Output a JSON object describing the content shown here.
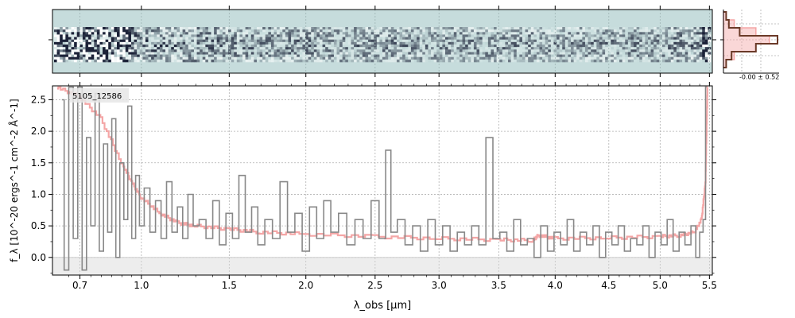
{
  "chart_data": [
    {
      "type": "heatmap",
      "panel": "2D spectrum",
      "colors": {
        "background": "#c6dcdc",
        "dark": "#1c2238",
        "bright": "#ffffff"
      },
      "rows": [
        {
          "level": 0.0
        },
        {
          "level": 0.0
        },
        {
          "level": 0.35
        },
        {
          "level": 0.55
        },
        {
          "level": 0.75
        },
        {
          "level": 0.9
        },
        {
          "level": 1.0
        },
        {
          "level": 1.0
        },
        {
          "level": 0.9
        },
        {
          "level": 0.75
        },
        {
          "level": 0.55
        },
        {
          "level": 0.35
        },
        {
          "level": 0.0
        },
        {
          "level": 0.0
        }
      ],
      "noise_by_wavelength": [
        {
          "x": 0.6,
          "noise": 1.0
        },
        {
          "x": 0.9,
          "noise": 0.9
        },
        {
          "x": 1.0,
          "noise": 0.6
        },
        {
          "x": 1.5,
          "noise": 0.45
        },
        {
          "x": 3.0,
          "noise": 0.35
        },
        {
          "x": 5.0,
          "noise": 0.35
        },
        {
          "x": 5.4,
          "noise": 0.5
        },
        {
          "x": 5.5,
          "noise": 1.0
        }
      ]
    },
    {
      "type": "line",
      "panel": "residual histogram",
      "annotation": "-0.00 ± 0.52",
      "colors": {
        "data": "#6b3a28",
        "model": "#f4a6a6"
      },
      "bins": [
        -3,
        -2,
        -1,
        0,
        1,
        2,
        3
      ],
      "series": [
        {
          "name": "",
          "values": [
            0.05,
            0.1,
            0.3,
            1.0,
            0.6,
            0.15,
            0.05
          ]
        },
        {
          "name": "",
          "values": [
            0.05,
            0.2,
            0.6,
            0.85,
            0.6,
            0.2,
            0.05
          ]
        }
      ]
    },
    {
      "type": "line",
      "panel": "1D spectrum",
      "label": "5105_12586",
      "title": "",
      "xlabel": "λ_obs [μm]",
      "ylabel": "f_λ [10^-20 ergs^-1 cm^-2 Å^-1]",
      "xlim": [
        0.58,
        5.53
      ],
      "ylim": [
        -0.28,
        2.72
      ],
      "x_scale": "power-law, roughly λ^0.6",
      "x_tick_labels": [
        "0.7",
        "1.0",
        "1.5",
        "2.0",
        "2.5",
        "3.0",
        "3.5",
        "4.0",
        "4.5",
        "5.0",
        "5.5"
      ],
      "y_tick_labels": [
        "0.0",
        "0.5",
        "1.0",
        "1.5",
        "2.0",
        "2.5"
      ],
      "y_ticks": [
        0.0,
        0.5,
        1.0,
        1.5,
        2.0,
        2.5
      ],
      "grid": true,
      "colors": {
        "data": "#888888",
        "model": "#f4a6a6",
        "band": "#d6d6d6"
      },
      "series": [
        {
          "name": "",
          "role": "observed flux (step)",
          "points": [
            [
              0.62,
              2.5
            ],
            [
              0.64,
              -0.2
            ],
            [
              0.66,
              2.7
            ],
            [
              0.68,
              0.3
            ],
            [
              0.7,
              2.7
            ],
            [
              0.72,
              -0.2
            ],
            [
              0.74,
              1.9
            ],
            [
              0.76,
              0.5
            ],
            [
              0.78,
              2.6
            ],
            [
              0.8,
              0.1
            ],
            [
              0.82,
              1.8
            ],
            [
              0.84,
              0.4
            ],
            [
              0.86,
              2.2
            ],
            [
              0.88,
              0.0
            ],
            [
              0.9,
              1.5
            ],
            [
              0.92,
              0.6
            ],
            [
              0.94,
              2.4
            ],
            [
              0.96,
              0.3
            ],
            [
              0.98,
              1.3
            ],
            [
              1.0,
              0.5
            ],
            [
              1.03,
              1.1
            ],
            [
              1.06,
              0.4
            ],
            [
              1.09,
              0.9
            ],
            [
              1.12,
              0.3
            ],
            [
              1.15,
              1.2
            ],
            [
              1.18,
              0.4
            ],
            [
              1.21,
              0.8
            ],
            [
              1.24,
              0.3
            ],
            [
              1.27,
              1.0
            ],
            [
              1.3,
              0.5
            ],
            [
              1.34,
              0.6
            ],
            [
              1.38,
              0.3
            ],
            [
              1.42,
              0.9
            ],
            [
              1.46,
              0.2
            ],
            [
              1.5,
              0.7
            ],
            [
              1.54,
              0.3
            ],
            [
              1.58,
              1.3
            ],
            [
              1.62,
              0.4
            ],
            [
              1.66,
              0.8
            ],
            [
              1.7,
              0.2
            ],
            [
              1.75,
              0.6
            ],
            [
              1.8,
              0.3
            ],
            [
              1.85,
              1.2
            ],
            [
              1.9,
              0.4
            ],
            [
              1.95,
              0.7
            ],
            [
              2.0,
              0.1
            ],
            [
              2.05,
              0.8
            ],
            [
              2.1,
              0.3
            ],
            [
              2.15,
              0.9
            ],
            [
              2.2,
              0.4
            ],
            [
              2.26,
              0.7
            ],
            [
              2.32,
              0.2
            ],
            [
              2.38,
              0.6
            ],
            [
              2.44,
              0.3
            ],
            [
              2.5,
              0.9
            ],
            [
              2.56,
              0.3
            ],
            [
              2.6,
              1.7
            ],
            [
              2.64,
              0.4
            ],
            [
              2.7,
              0.6
            ],
            [
              2.76,
              0.2
            ],
            [
              2.82,
              0.5
            ],
            [
              2.88,
              0.1
            ],
            [
              2.94,
              0.6
            ],
            [
              3.0,
              0.2
            ],
            [
              3.06,
              0.5
            ],
            [
              3.12,
              0.1
            ],
            [
              3.18,
              0.4
            ],
            [
              3.24,
              0.2
            ],
            [
              3.3,
              0.5
            ],
            [
              3.36,
              0.2
            ],
            [
              3.42,
              1.9
            ],
            [
              3.48,
              0.3
            ],
            [
              3.54,
              0.4
            ],
            [
              3.6,
              0.1
            ],
            [
              3.66,
              0.6
            ],
            [
              3.72,
              0.2
            ],
            [
              3.78,
              0.3
            ],
            [
              3.84,
              0.0
            ],
            [
              3.9,
              0.5
            ],
            [
              3.96,
              0.1
            ],
            [
              4.02,
              0.4
            ],
            [
              4.08,
              0.2
            ],
            [
              4.14,
              0.6
            ],
            [
              4.2,
              0.1
            ],
            [
              4.26,
              0.4
            ],
            [
              4.32,
              0.2
            ],
            [
              4.38,
              0.5
            ],
            [
              4.44,
              0.0
            ],
            [
              4.5,
              0.4
            ],
            [
              4.56,
              0.2
            ],
            [
              4.62,
              0.5
            ],
            [
              4.68,
              0.1
            ],
            [
              4.74,
              0.3
            ],
            [
              4.8,
              0.2
            ],
            [
              4.86,
              0.5
            ],
            [
              4.92,
              0.0
            ],
            [
              4.98,
              0.4
            ],
            [
              5.04,
              0.2
            ],
            [
              5.1,
              0.6
            ],
            [
              5.16,
              0.1
            ],
            [
              5.22,
              0.4
            ],
            [
              5.28,
              0.2
            ],
            [
              5.34,
              0.5
            ],
            [
              5.38,
              0.0
            ],
            [
              5.42,
              0.4
            ],
            [
              5.45,
              0.6
            ],
            [
              5.47,
              2.7
            ]
          ]
        },
        {
          "name": "",
          "role": "model continuum",
          "points": [
            [
              0.6,
              2.7
            ],
            [
              0.7,
              2.55
            ],
            [
              0.8,
              2.2
            ],
            [
              0.9,
              1.5
            ],
            [
              0.95,
              1.2
            ],
            [
              1.0,
              0.95
            ],
            [
              1.1,
              0.7
            ],
            [
              1.2,
              0.55
            ],
            [
              1.3,
              0.5
            ],
            [
              1.5,
              0.45
            ],
            [
              1.7,
              0.4
            ],
            [
              2.0,
              0.37
            ],
            [
              2.5,
              0.33
            ],
            [
              3.0,
              0.3
            ],
            [
              3.5,
              0.28
            ],
            [
              3.8,
              0.27
            ],
            [
              3.85,
              0.35
            ],
            [
              4.0,
              0.3
            ],
            [
              4.5,
              0.31
            ],
            [
              5.0,
              0.33
            ],
            [
              5.2,
              0.35
            ],
            [
              5.35,
              0.4
            ],
            [
              5.42,
              0.6
            ],
            [
              5.46,
              1.2
            ],
            [
              5.48,
              2.7
            ]
          ]
        }
      ]
    }
  ]
}
